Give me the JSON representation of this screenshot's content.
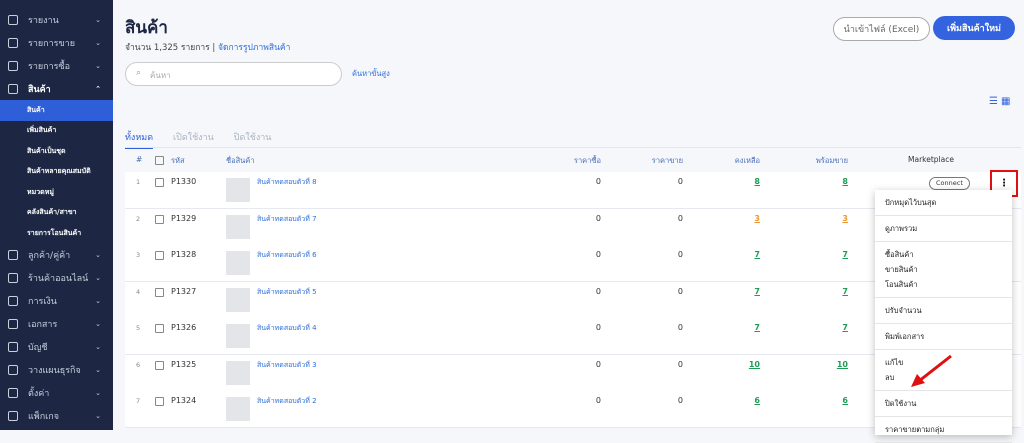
{
  "sidebar": {
    "items": [
      {
        "label": "รายงาน"
      },
      {
        "label": "รายการขาย"
      },
      {
        "label": "รายการซื้อ"
      },
      {
        "label": "สินค้า",
        "children": [
          {
            "label": "สินค้า",
            "active": true
          },
          {
            "label": "เพิ่มสินค้า"
          },
          {
            "label": "สินค้าเป็นชุด"
          },
          {
            "label": "สินค้าหลายคุณสมบัติ"
          },
          {
            "label": "หมวดหมู่"
          },
          {
            "label": "คลังสินค้า/สาขา"
          },
          {
            "label": "รายการโอนสินค้า"
          }
        ]
      },
      {
        "label": "ลูกค้า/คู่ค้า"
      },
      {
        "label": "ร้านค้าออนไลน์"
      },
      {
        "label": "การเงิน"
      },
      {
        "label": "เอกสาร"
      },
      {
        "label": "บัญชี"
      },
      {
        "label": "วางแผนธุรกิจ"
      },
      {
        "label": "ตั้งค่า"
      },
      {
        "label": "แพ็กเกจ"
      }
    ]
  },
  "header": {
    "title": "สินค้า",
    "count": "จำนวน 1,325 รายการ",
    "separator": "|",
    "image_link": "จัดการรูปภาพสินค้า",
    "import_button": "นำเข้าไฟล์ (Excel)",
    "add_button": "เพิ่มสินค้าใหม่"
  },
  "search": {
    "placeholder": "ค้นหา",
    "advanced": "ค้นหาขั้นสูง"
  },
  "tabs": [
    "ทั้งหมด",
    "เปิดใช้งาน",
    "ปิดใช้งาน"
  ],
  "table": {
    "columns": [
      "#",
      "รหัส",
      "ชื่อสินค้า",
      "ราคาซื้อ",
      "ราคาขาย",
      "คงเหลือ",
      "พร้อมขาย",
      "Marketplace"
    ],
    "rows": [
      {
        "no": 1,
        "code": "P1330",
        "name": "สินค้าทดสอบตัวที่ 8",
        "buy": 0,
        "sell": 0,
        "stock": 8,
        "ready": 8,
        "stock_color": "#1f9d55",
        "marketplace": "Connect"
      },
      {
        "no": 2,
        "code": "P1329",
        "name": "สินค้าทดสอบตัวที่ 7",
        "buy": 0,
        "sell": 0,
        "stock": 3,
        "ready": 3,
        "stock_color": "#f0962f"
      },
      {
        "no": 3,
        "code": "P1328",
        "name": "สินค้าทดสอบตัวที่ 6",
        "buy": 0,
        "sell": 0,
        "stock": 7,
        "ready": 7,
        "stock_color": "#1f9d55"
      },
      {
        "no": 4,
        "code": "P1327",
        "name": "สินค้าทดสอบตัวที่ 5",
        "buy": 0,
        "sell": 0,
        "stock": 7,
        "ready": 7,
        "stock_color": "#1f9d55"
      },
      {
        "no": 5,
        "code": "P1326",
        "name": "สินค้าทดสอบตัวที่ 4",
        "buy": 0,
        "sell": 0,
        "stock": 7,
        "ready": 7,
        "stock_color": "#1f9d55"
      },
      {
        "no": 6,
        "code": "P1325",
        "name": "สินค้าทดสอบตัวที่ 3",
        "buy": 0,
        "sell": 0,
        "stock": 10,
        "ready": 10,
        "stock_color": "#1f9d55"
      },
      {
        "no": 7,
        "code": "P1324",
        "name": "สินค้าทดสอบตัวที่ 2",
        "buy": 0,
        "sell": 0,
        "stock": 6,
        "ready": 6,
        "stock_color": "#1f9d55"
      }
    ]
  },
  "menu": [
    [
      "ปักหมุดไว้บนสุด"
    ],
    [
      "ดูภาพรวม"
    ],
    [
      "ซื้อสินค้า",
      "ขายสินค้า",
      "โอนสินค้า"
    ],
    [
      "ปรับจำนวน"
    ],
    [
      "พิมพ์เอกสาร"
    ],
    [
      "แก้ไข",
      "ลบ"
    ],
    [
      "ปิดใช้งาน"
    ],
    [
      "ราคาขายตามกลุ่ม"
    ]
  ]
}
